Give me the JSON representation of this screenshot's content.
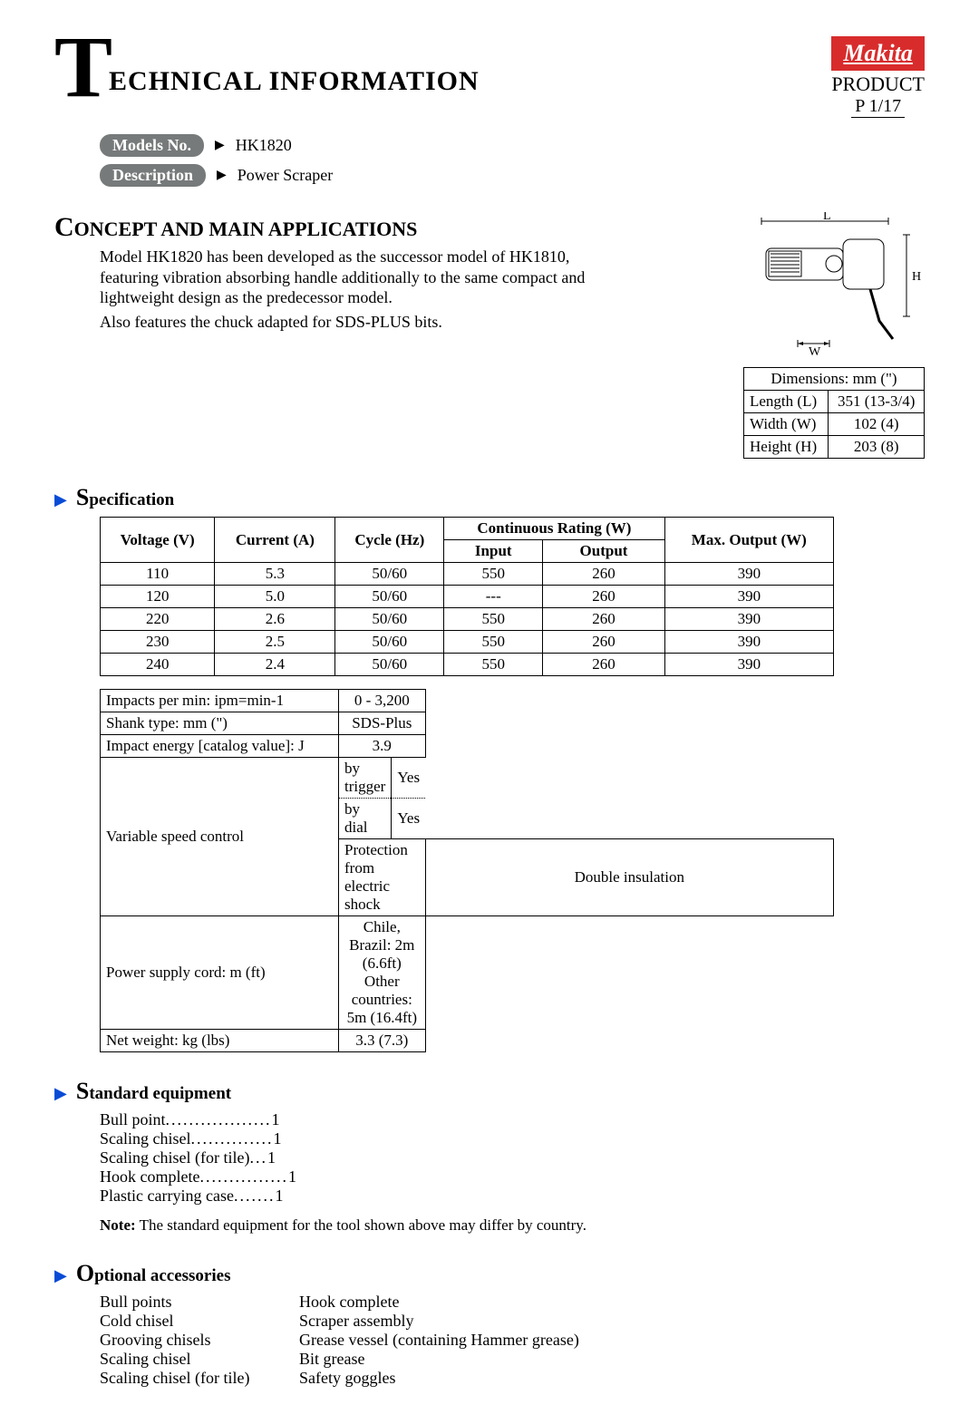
{
  "header": {
    "title_rest": "ECHNICAL INFORMATION",
    "logo": "Makita",
    "product_label": "PRODUCT",
    "page": "P  1/17"
  },
  "badges": {
    "models_label": "Models No.",
    "model": "HK1820",
    "desc_label": "Description",
    "desc": "Power Scraper"
  },
  "concept": {
    "heading_first": "C",
    "heading_rest": "ONCEPT AND MAIN APPLICATIONS",
    "para1": "Model HK1820 has been developed as the successor model of HK1810, featuring vibration absorbing handle additionally to the same compact and lightweight design as the predecessor model.",
    "para2": "Also features the chuck adapted for SDS-PLUS bits."
  },
  "dimensions": {
    "header": "Dimensions: mm (\")",
    "rows": [
      {
        "label": "Length (L)",
        "value": "351 (13-3/4)"
      },
      {
        "label": "Width (W)",
        "value": "102 (4)"
      },
      {
        "label": "Height (H)",
        "value": "203 (8)"
      }
    ],
    "labels": {
      "L": "L",
      "H": "H",
      "W": "W"
    }
  },
  "spec_section": {
    "heading_first": "S",
    "heading_rest": "pecification",
    "columns": [
      "Voltage (V)",
      "Current (A)",
      "Cycle (Hz)",
      "Continuous Rating (W)",
      "Max. Output (W)"
    ],
    "sub_columns": [
      "Input",
      "Output"
    ],
    "rows": [
      [
        "110",
        "5.3",
        "50/60",
        "550",
        "260",
        "390"
      ],
      [
        "120",
        "5.0",
        "50/60",
        "---",
        "260",
        "390"
      ],
      [
        "220",
        "2.6",
        "50/60",
        "550",
        "260",
        "390"
      ],
      [
        "230",
        "2.5",
        "50/60",
        "550",
        "260",
        "390"
      ],
      [
        "240",
        "2.4",
        "50/60",
        "550",
        "260",
        "390"
      ]
    ]
  },
  "spec2": {
    "rows": [
      {
        "label": "Impacts per min: ipm=min-1",
        "value": "0 - 3,200"
      },
      {
        "label": "Shank type: mm (\")",
        "value": "SDS-Plus"
      },
      {
        "label": "Impact energy [catalog value]: J",
        "value": "3.9"
      }
    ],
    "vsc_label": "Variable speed control",
    "vsc_sub1": "by trigger",
    "vsc_val1": "Yes",
    "vsc_sub2": "by dial",
    "vsc_val2": "Yes",
    "rows_after": [
      {
        "label": "Protection from electric shock",
        "value": "Double insulation"
      },
      {
        "label": "Power supply cord: m (ft)",
        "value_l1": "Chile, Brazil: 2m (6.6ft)",
        "value_l2": "Other countries: 5m (16.4ft)"
      },
      {
        "label": "Net weight: kg (lbs)",
        "value": "3.3 (7.3)"
      }
    ]
  },
  "std_equip": {
    "heading_first": "S",
    "heading_rest": "tandard equipment",
    "items": [
      {
        "name": "Bull point",
        "qty": "1"
      },
      {
        "name": "Scaling chisel",
        "qty": "1"
      },
      {
        "name": "Scaling chisel (for tile)",
        "qty": "1"
      },
      {
        "name": "Hook complete",
        "qty": "1"
      },
      {
        "name": "Plastic carrying case",
        "qty": "1"
      }
    ],
    "note_label": "Note:",
    "note_text": "The standard equipment for the tool shown above may differ by country."
  },
  "opt_acc": {
    "heading_first": "O",
    "heading_rest": "ptional  accessories",
    "col1": [
      "Bull points",
      "Cold chisel",
      "Grooving chisels",
      "Scaling chisel",
      "Scaling chisel (for tile)"
    ],
    "col2": [
      "Hook complete",
      "Scraper assembly",
      "Grease vessel (containing Hammer grease)",
      "Bit grease",
      "Safety goggles"
    ]
  },
  "colors": {
    "badge_bg": "#777a7a",
    "logo_bg": "#d82c2c",
    "blue": "#0a4bd6"
  }
}
